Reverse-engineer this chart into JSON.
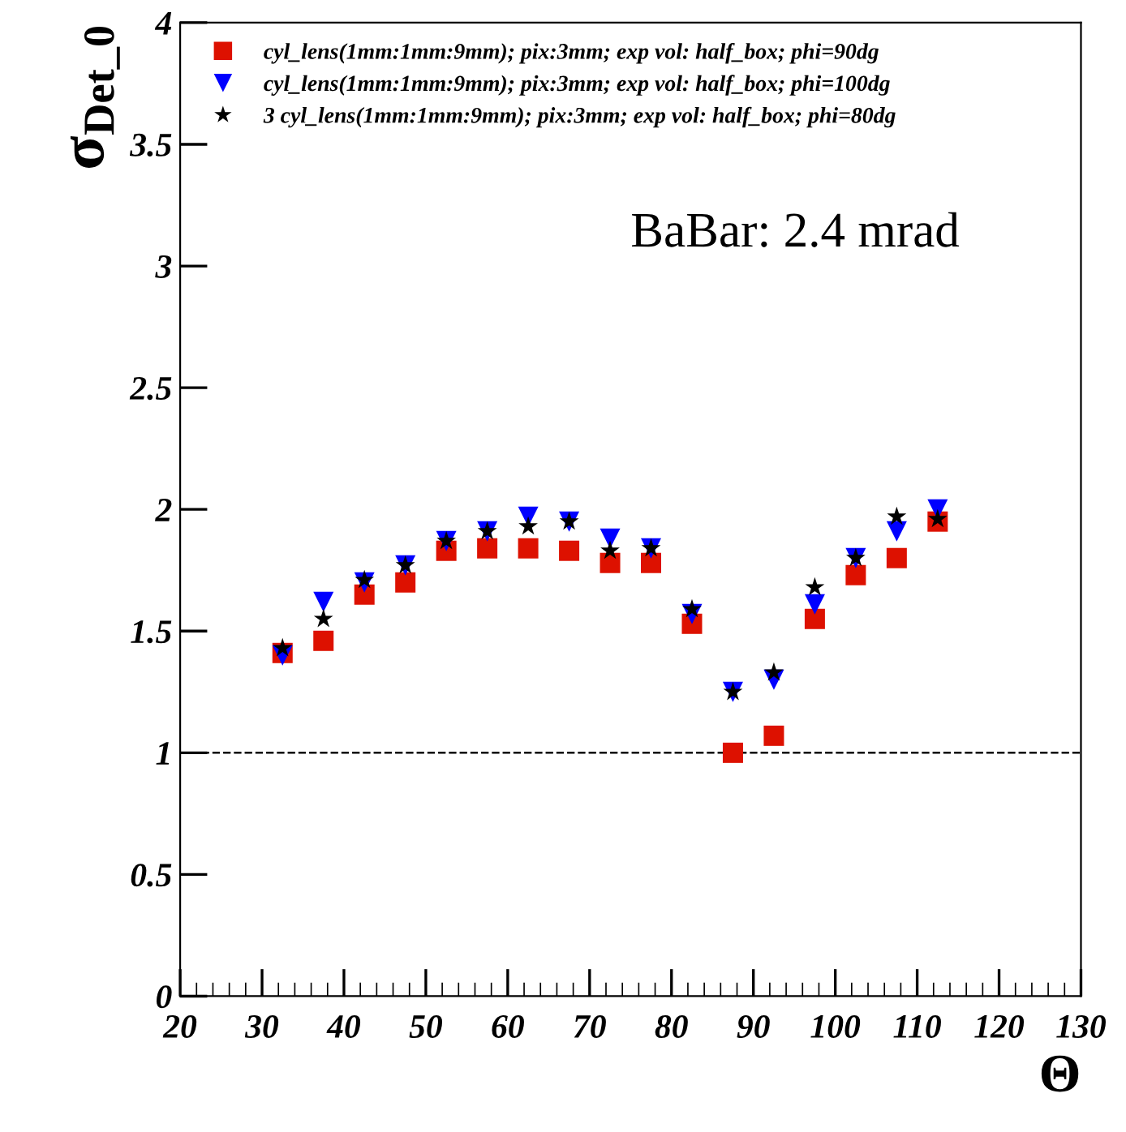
{
  "chart_data": {
    "type": "scatter",
    "xlabel": "Θ",
    "ylabel": "σ$_{Det_0}$",
    "x": [
      32.5,
      37.5,
      42.5,
      47.5,
      52.5,
      57.5,
      62.5,
      67.5,
      72.5,
      77.5,
      82.5,
      87.5,
      92.5,
      97.5,
      102.5,
      107.5,
      112.5
    ],
    "series": [
      {
        "name": "cyl_lens(1mm:1mm:9mm); pix:3mm; exp vol: half_box; phi=90dg",
        "color": "#dd1100",
        "marker": "square",
        "values": [
          1.41,
          1.46,
          1.65,
          1.7,
          1.83,
          1.84,
          1.84,
          1.83,
          1.78,
          1.78,
          1.53,
          1.0,
          1.07,
          1.55,
          1.73,
          1.8,
          1.95
        ]
      },
      {
        "name": "cyl_lens(1mm:1mm:9mm); pix:3mm; exp vol: half_box; phi=100dg",
        "color": "#0000ff",
        "marker": "triangle",
        "values": [
          1.4,
          1.62,
          1.7,
          1.77,
          1.87,
          1.91,
          1.97,
          1.95,
          1.88,
          1.84,
          1.57,
          1.25,
          1.3,
          1.61,
          1.8,
          1.91,
          2.0
        ]
      },
      {
        "name": "3 cyl_lens(1mm:1mm:9mm); pix:3mm; exp vol: half_box; phi=80dg",
        "color": "#000000",
        "marker": "star",
        "values": [
          1.43,
          1.55,
          1.71,
          1.77,
          1.87,
          1.91,
          1.93,
          1.95,
          1.83,
          1.84,
          1.59,
          1.25,
          1.33,
          1.68,
          1.8,
          1.97,
          1.96
        ]
      }
    ],
    "xlim": [
      20,
      130
    ],
    "xticks": [
      20,
      30,
      40,
      50,
      60,
      70,
      80,
      90,
      100,
      110,
      120,
      130
    ],
    "ylim": [
      0,
      4
    ],
    "yticks": [
      0,
      0.5,
      1,
      1.5,
      2,
      2.5,
      3,
      3.5,
      4
    ],
    "ref_lines": [
      {
        "axis": "y",
        "value": 1,
        "color": "#000000",
        "line_style": "dashed"
      }
    ],
    "annotations": [
      "BaBar: 2.4 mrad"
    ],
    "legend": "top left",
    "grid": false
  }
}
